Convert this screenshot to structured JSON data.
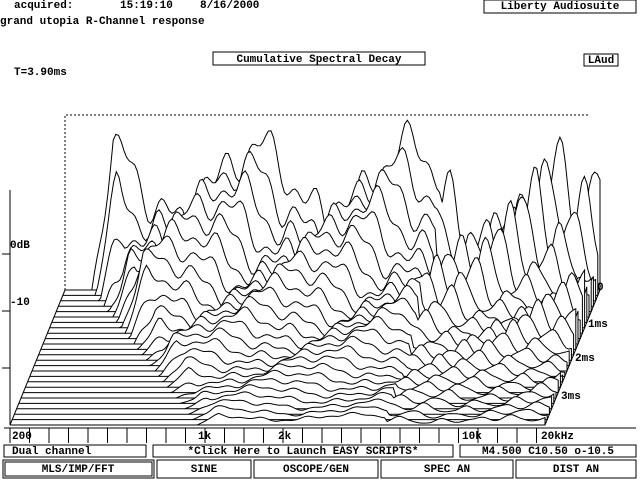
{
  "header": {
    "acquired_label": "acquired:",
    "time": "15:19:10",
    "date": "8/16/2000",
    "app_title": "Liberty Audiosuite",
    "measurement": "grand utopia R-Channel response"
  },
  "plot": {
    "title": "Cumulative Spectral Decay",
    "badge": "LAud",
    "time_window": "T=3.90ms",
    "level_labels": [
      "0dB",
      "-10"
    ],
    "time_labels": [
      "0",
      "1ms",
      "2ms",
      "3ms"
    ],
    "freq_labels": [
      "200",
      "1k",
      "2k",
      "10k",
      "20kHz"
    ]
  },
  "status": {
    "mode": "Dual channel",
    "scripts": "*Click Here to Launch EASY SCRIPTS*",
    "params": "M4.500 C10.50 o-10.5"
  },
  "buttons": [
    "MLS/IMP/FFT",
    "SINE",
    "OSCOPE/GEN",
    "SPEC AN",
    "DIST AN"
  ]
}
